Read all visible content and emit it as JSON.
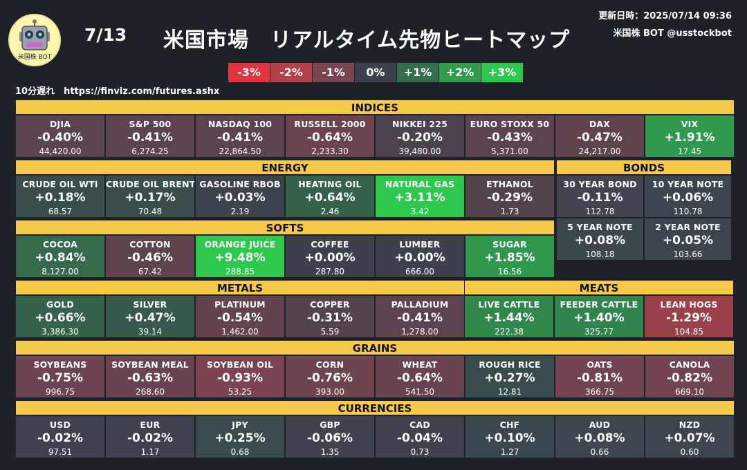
{
  "header": {
    "logo_text": "米国株 BOT",
    "date": "7/13",
    "title": "米国市場　リアルタイム先物ヒートマップ",
    "updated": "更新日時：2025/07/14 09:36",
    "account": "米国株 BOT @usstockbot",
    "delay_note": "10分遅れ　https://finviz.com/futures.ashx"
  },
  "legend": [
    {
      "label": "-3%",
      "color": "#e0353e"
    },
    {
      "label": "-2%",
      "color": "#b5404a"
    },
    {
      "label": "-1%",
      "color": "#7b4550"
    },
    {
      "label": "0%",
      "color": "#3e404e"
    },
    {
      "label": "+1%",
      "color": "#356e4c"
    },
    {
      "label": "+2%",
      "color": "#2e9b4d"
    },
    {
      "label": "+3%",
      "color": "#2ec84e"
    }
  ],
  "sections": {
    "indices": {
      "title": "INDICES",
      "items": [
        {
          "name": "DJIA",
          "change": "-0.40%",
          "price": "44,420.00",
          "color": "#5b434f"
        },
        {
          "name": "S&P 500",
          "change": "-0.41%",
          "price": "6,274.25",
          "color": "#5c434f"
        },
        {
          "name": "NASDAQ 100",
          "change": "-0.41%",
          "price": "22,864.50",
          "color": "#5c434f"
        },
        {
          "name": "RUSSELL 2000",
          "change": "-0.64%",
          "price": "2,233.30",
          "color": "#6b444f"
        },
        {
          "name": "NIKKEI 225",
          "change": "-0.20%",
          "price": "39,480.00",
          "color": "#4d424f"
        },
        {
          "name": "EURO STOXX 50",
          "change": "-0.43%",
          "price": "5,371.00",
          "color": "#5d434f"
        },
        {
          "name": "DAX",
          "change": "-0.47%",
          "price": "24,217.00",
          "color": "#5f434f"
        },
        {
          "name": "VIX",
          "change": "+1.91%",
          "price": "17.45",
          "color": "#2f9a4c"
        }
      ]
    },
    "energy": {
      "title": "ENERGY",
      "items": [
        {
          "name": "CRUDE OIL WTI",
          "change": "+0.18%",
          "price": "68.57",
          "color": "#3a4d4d"
        },
        {
          "name": "CRUDE OIL BRENT",
          "change": "+0.17%",
          "price": "70.48",
          "color": "#3a4d4d"
        },
        {
          "name": "GASOLINE RBOB",
          "change": "+0.03%",
          "price": "2.19",
          "color": "#3d444e"
        },
        {
          "name": "HEATING OIL",
          "change": "+0.64%",
          "price": "2.46",
          "color": "#35614b"
        },
        {
          "name": "NATURAL GAS",
          "change": "+3.11%",
          "price": "3.42",
          "color": "#2ec84e"
        },
        {
          "name": "ETHANOL",
          "change": "-0.29%",
          "price": "1.73",
          "color": "#52434f"
        }
      ]
    },
    "bonds": {
      "title": "BONDS",
      "items": [
        {
          "name": "30 YEAR BOND",
          "change": "-0.11%",
          "price": "112.78",
          "color": "#47424f"
        },
        {
          "name": "10 YEAR NOTE",
          "change": "+0.06%",
          "price": "110.78",
          "color": "#3d464e"
        },
        {
          "name": "5 YEAR NOTE",
          "change": "+0.08%",
          "price": "108.18",
          "color": "#3d474e"
        },
        {
          "name": "2 YEAR NOTE",
          "change": "+0.05%",
          "price": "103.66",
          "color": "#3d454e"
        }
      ]
    },
    "softs": {
      "title": "SOFTS",
      "items": [
        {
          "name": "COCOA",
          "change": "+0.84%",
          "price": "8,127.00",
          "color": "#356a4c"
        },
        {
          "name": "COTTON",
          "change": "-0.46%",
          "price": "67.42",
          "color": "#5f434f"
        },
        {
          "name": "ORANGE JUICE",
          "change": "+9.48%",
          "price": "288.85",
          "color": "#2ec84e"
        },
        {
          "name": "COFFEE",
          "change": "+0.00%",
          "price": "287.80",
          "color": "#3e404e"
        },
        {
          "name": "LUMBER",
          "change": "+0.00%",
          "price": "666.00",
          "color": "#3e404e"
        },
        {
          "name": "SUGAR",
          "change": "+1.85%",
          "price": "16.56",
          "color": "#2f984c"
        }
      ]
    },
    "metals": {
      "title": "METALS",
      "items": [
        {
          "name": "GOLD",
          "change": "+0.66%",
          "price": "3,386.30",
          "color": "#35624b"
        },
        {
          "name": "SILVER",
          "change": "+0.47%",
          "price": "39.14",
          "color": "#375a4c"
        },
        {
          "name": "PLATINUM",
          "change": "-0.54%",
          "price": "1,462.00",
          "color": "#63434f"
        },
        {
          "name": "COPPER",
          "change": "-0.31%",
          "price": "5.59",
          "color": "#53434f"
        },
        {
          "name": "PALLADIUM",
          "change": "-0.41%",
          "price": "1,278.00",
          "color": "#5c434f"
        }
      ]
    },
    "meats": {
      "title": "MEATS",
      "items": [
        {
          "name": "LIVE CATTLE",
          "change": "+1.44%",
          "price": "222.38",
          "color": "#2f874c"
        },
        {
          "name": "FEEDER CATTLE",
          "change": "+1.40%",
          "price": "325.77",
          "color": "#2f854c"
        },
        {
          "name": "LEAN HOGS",
          "change": "-1.29%",
          "price": "104.85",
          "color": "#99404a"
        }
      ]
    },
    "grains": {
      "title": "GRAINS",
      "items": [
        {
          "name": "SOYBEANS",
          "change": "-0.75%",
          "price": "996.75",
          "color": "#6d444f"
        },
        {
          "name": "SOYBEAN MEAL",
          "change": "-0.63%",
          "price": "268.60",
          "color": "#69444f"
        },
        {
          "name": "SOYBEAN OIL",
          "change": "-0.93%",
          "price": "53.25",
          "color": "#7b4450"
        },
        {
          "name": "CORN",
          "change": "-0.76%",
          "price": "393.00",
          "color": "#6e444f"
        },
        {
          "name": "WHEAT",
          "change": "-0.64%",
          "price": "541.50",
          "color": "#69444f"
        },
        {
          "name": "ROUGH RICE",
          "change": "+0.27%",
          "price": "12.81",
          "color": "#394c4d"
        },
        {
          "name": "OATS",
          "change": "-0.81%",
          "price": "366.75",
          "color": "#72444f"
        },
        {
          "name": "CANOLA",
          "change": "-0.82%",
          "price": "669.10",
          "color": "#72444f"
        }
      ]
    },
    "currencies": {
      "title": "CURRENCIES",
      "items": [
        {
          "name": "USD",
          "change": "-0.02%",
          "price": "97.51",
          "color": "#40414e"
        },
        {
          "name": "EUR",
          "change": "-0.02%",
          "price": "1.17",
          "color": "#40414e"
        },
        {
          "name": "JPY",
          "change": "+0.25%",
          "price": "0.68",
          "color": "#3a4b4d"
        },
        {
          "name": "GBP",
          "change": "-0.06%",
          "price": "1.35",
          "color": "#42414e"
        },
        {
          "name": "CAD",
          "change": "-0.04%",
          "price": "0.73",
          "color": "#41414e"
        },
        {
          "name": "CHF",
          "change": "+0.10%",
          "price": "1.27",
          "color": "#3c464e"
        },
        {
          "name": "AUD",
          "change": "+0.08%",
          "price": "0.66",
          "color": "#3d454e"
        },
        {
          "name": "NZD",
          "change": "+0.07%",
          "price": "0.60",
          "color": "#3d454e"
        }
      ]
    }
  }
}
